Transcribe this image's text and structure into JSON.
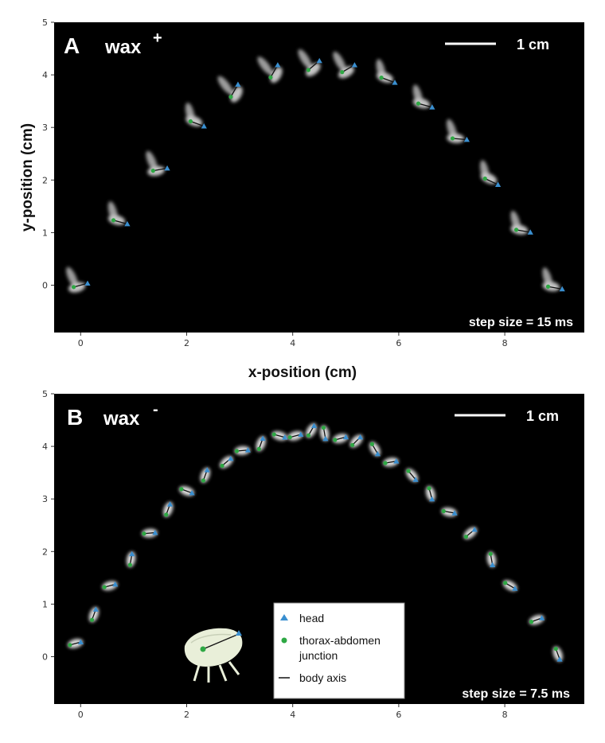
{
  "chart_data": [
    {
      "type": "scatter",
      "panel_label": "A",
      "title": "wax",
      "title_sup": "+",
      "scale_bar_label": "1 cm",
      "step_label": "step size = 15 ms",
      "xlabel": "x-position (cm)",
      "ylabel": "y-position (cm)",
      "xlim": [
        -0.5,
        9.5
      ],
      "ylim": [
        -0.9,
        5.0
      ],
      "xticks": [
        "0",
        "2",
        "4",
        "6",
        "8"
      ],
      "yticks": [
        "0",
        "1",
        "2",
        "3",
        "4",
        "5"
      ],
      "background": "#000000",
      "points": [
        {
          "x": 0.0,
          "y": 0.0,
          "angle": 15
        },
        {
          "x": 0.75,
          "y": 1.2,
          "angle": -15
        },
        {
          "x": 1.5,
          "y": 2.2,
          "angle": 10
        },
        {
          "x": 2.2,
          "y": 3.07,
          "angle": -20
        },
        {
          "x": 2.9,
          "y": 3.7,
          "angle": 60
        },
        {
          "x": 3.65,
          "y": 4.07,
          "angle": 60
        },
        {
          "x": 4.4,
          "y": 4.18,
          "angle": 40
        },
        {
          "x": 5.05,
          "y": 4.12,
          "angle": 30
        },
        {
          "x": 5.8,
          "y": 3.9,
          "angle": -20
        },
        {
          "x": 6.5,
          "y": 3.42,
          "angle": -15
        },
        {
          "x": 7.15,
          "y": 2.78,
          "angle": -5
        },
        {
          "x": 7.75,
          "y": 1.97,
          "angle": -25
        },
        {
          "x": 8.35,
          "y": 1.03,
          "angle": -10
        },
        {
          "x": 8.95,
          "y": -0.05,
          "angle": -10
        }
      ]
    },
    {
      "type": "scatter",
      "panel_label": "B",
      "title": "wax",
      "title_sup": "-",
      "scale_bar_label": "1 cm",
      "step_label": "step size = 7.5 ms",
      "xlim": [
        -0.5,
        9.5
      ],
      "ylim": [
        -0.9,
        5.0
      ],
      "xticks": [
        "0",
        "2",
        "4",
        "6",
        "8"
      ],
      "yticks": [
        "0",
        "1",
        "2",
        "3",
        "4",
        "5"
      ],
      "background": "#000000",
      "points": [
        {
          "x": -0.1,
          "y": 0.25,
          "angle": 15
        },
        {
          "x": 0.25,
          "y": 0.8,
          "angle": 70
        },
        {
          "x": 0.55,
          "y": 1.35,
          "angle": 15
        },
        {
          "x": 0.95,
          "y": 1.85,
          "angle": 80
        },
        {
          "x": 1.3,
          "y": 2.35,
          "angle": 5
        },
        {
          "x": 1.65,
          "y": 2.8,
          "angle": 70
        },
        {
          "x": 2.0,
          "y": 3.15,
          "angle": -20
        },
        {
          "x": 2.35,
          "y": 3.45,
          "angle": 70
        },
        {
          "x": 2.75,
          "y": 3.7,
          "angle": 40
        },
        {
          "x": 3.05,
          "y": 3.92,
          "angle": 5
        },
        {
          "x": 3.4,
          "y": 4.05,
          "angle": 70
        },
        {
          "x": 3.75,
          "y": 4.2,
          "angle": -15
        },
        {
          "x": 4.05,
          "y": 4.2,
          "angle": 15
        },
        {
          "x": 4.35,
          "y": 4.3,
          "angle": 60
        },
        {
          "x": 4.6,
          "y": 4.25,
          "angle": -80
        },
        {
          "x": 4.9,
          "y": 4.15,
          "angle": 15
        },
        {
          "x": 5.2,
          "y": 4.1,
          "angle": 45
        },
        {
          "x": 5.55,
          "y": 3.95,
          "angle": -60
        },
        {
          "x": 5.85,
          "y": 3.7,
          "angle": 10
        },
        {
          "x": 6.25,
          "y": 3.45,
          "angle": -50
        },
        {
          "x": 6.6,
          "y": 3.1,
          "angle": -75
        },
        {
          "x": 6.95,
          "y": 2.75,
          "angle": -10
        },
        {
          "x": 7.35,
          "y": 2.35,
          "angle": 40
        },
        {
          "x": 7.75,
          "y": 1.85,
          "angle": -80
        },
        {
          "x": 8.1,
          "y": 1.35,
          "angle": -30
        },
        {
          "x": 8.6,
          "y": 0.7,
          "angle": 20
        },
        {
          "x": 9.0,
          "y": 0.05,
          "angle": -70
        }
      ]
    }
  ],
  "legend": {
    "head": "head",
    "junction_line1": "thorax-abdomen",
    "junction_line2": "junction",
    "axis": "body axis"
  },
  "colors": {
    "head": "#3a8fd0",
    "junction": "#2ea844",
    "insect": "#e6e6e6",
    "illustration": "#e9efd9"
  }
}
